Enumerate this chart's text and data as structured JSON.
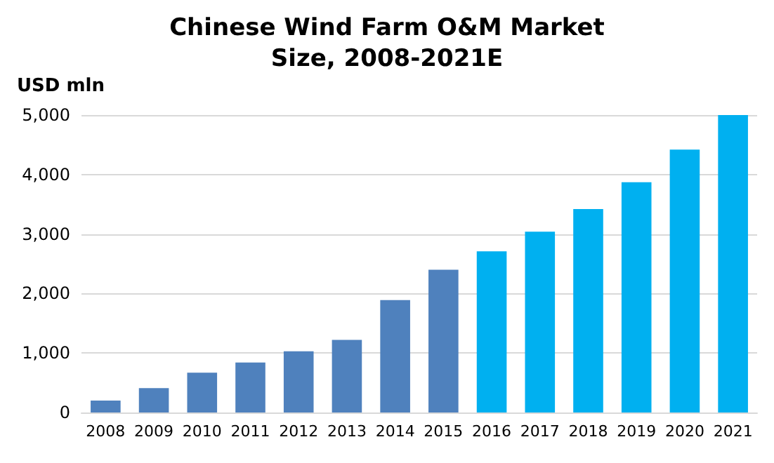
{
  "chart_data": {
    "type": "bar",
    "title": "Chinese Wind Farm O&M Market\nSize, 2008-2021E",
    "ylabel": "USD mln",
    "categories": [
      "2008",
      "2009",
      "2010",
      "2011",
      "2012",
      "2013",
      "2014",
      "2015",
      "2016",
      "2017",
      "2018",
      "2019",
      "2020",
      "2021"
    ],
    "values": [
      200,
      410,
      670,
      840,
      1030,
      1220,
      1890,
      2400,
      2710,
      3040,
      3420,
      3870,
      4420,
      5000
    ],
    "colors": [
      "#4f81bd",
      "#4f81bd",
      "#4f81bd",
      "#4f81bd",
      "#4f81bd",
      "#4f81bd",
      "#4f81bd",
      "#4f81bd",
      "#00b0f0",
      "#00b0f0",
      "#00b0f0",
      "#00b0f0",
      "#00b0f0",
      "#00b0f0"
    ],
    "ylim": [
      0,
      5000
    ],
    "yticks": [
      0,
      {
        "value": 1000,
        "label": "1,000"
      },
      {
        "value": 2000,
        "label": "2,000"
      },
      {
        "value": 3000,
        "label": "3,000"
      },
      {
        "value": 4000,
        "label": "4,000"
      },
      {
        "value": 5000,
        "label": "5,000"
      }
    ],
    "grid": "y"
  }
}
